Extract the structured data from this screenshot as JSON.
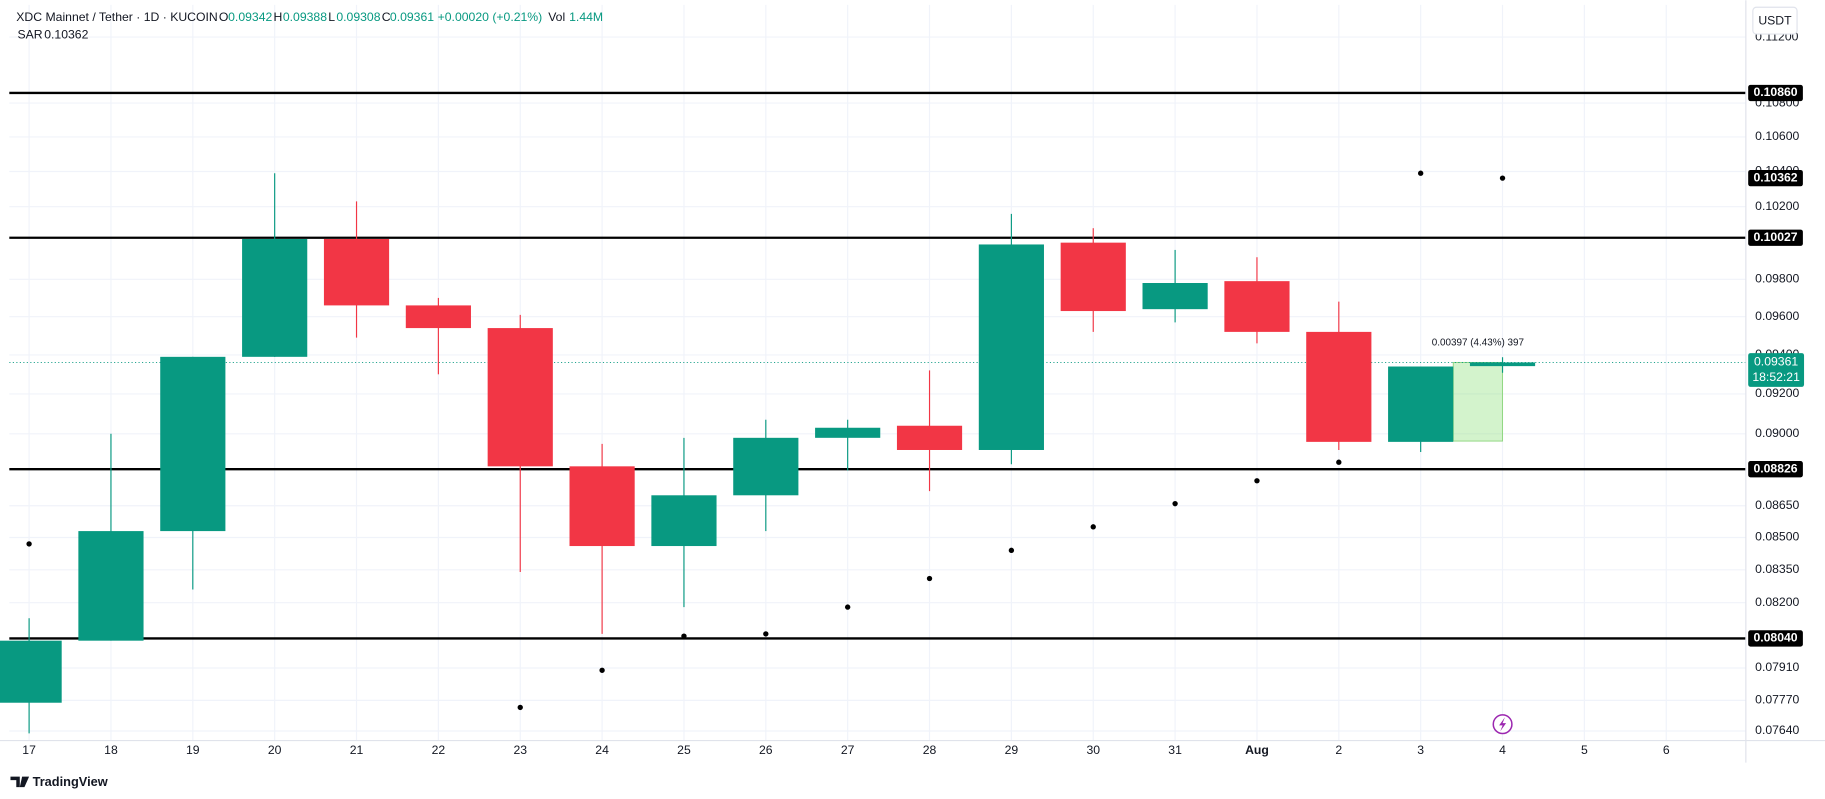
{
  "chart_data": {
    "type": "candlestick",
    "title": "XDC Mainnet / Tether · 1D · KUCOIN",
    "categories": [
      "17",
      "18",
      "19",
      "20",
      "21",
      "22",
      "23",
      "24",
      "25",
      "26",
      "27",
      "28",
      "29",
      "30",
      "31",
      "Aug",
      "2",
      "3",
      "4",
      "5",
      "6"
    ],
    "open": [
      0.0776,
      0.0803,
      0.0853,
      0.0939,
      0.1002,
      0.0966,
      0.0954,
      0.0884,
      0.0846,
      0.087,
      0.0898,
      0.0904,
      0.0892,
      0.1,
      0.0964,
      0.0979,
      0.0952,
      0.0896,
      0.09342,
      null,
      null
    ],
    "high": [
      0.0813,
      0.09,
      0.0939,
      0.1039,
      0.1023,
      0.097,
      0.0961,
      0.0895,
      0.0898,
      0.0907,
      0.0907,
      0.0932,
      0.1016,
      0.1008,
      0.0996,
      0.0992,
      0.0968,
      0.0934,
      0.09388,
      null,
      null
    ],
    "low": [
      0.0763,
      0.0803,
      0.0826,
      0.0939,
      0.0949,
      0.093,
      0.0834,
      0.0806,
      0.0818,
      0.0853,
      0.0882,
      0.0872,
      0.0885,
      0.0952,
      0.0957,
      0.0946,
      0.0892,
      0.0891,
      0.09308,
      null,
      null
    ],
    "close": [
      0.0803,
      0.0853,
      0.0939,
      0.1002,
      0.0966,
      0.0954,
      0.0884,
      0.0846,
      0.087,
      0.0898,
      0.0903,
      0.0892,
      0.0999,
      0.0963,
      0.0978,
      0.0952,
      0.0896,
      0.0934,
      0.09361,
      null,
      null
    ],
    "up_color": "#089981",
    "down_color": "#f23645",
    "indicator": {
      "name": "SAR",
      "color": "#000000",
      "values": [
        0.0847,
        null,
        null,
        null,
        null,
        null,
        0.0774,
        0.079,
        0.0805,
        0.0806,
        0.0818,
        0.0831,
        0.0844,
        0.0855,
        0.0866,
        0.0877,
        0.0886,
        0.1039,
        0.10362,
        null,
        null
      ]
    },
    "header": {
      "open_label": "O",
      "high_label": "H",
      "low_label": "L",
      "close_label": "C",
      "change": "+0.00020 (+0.21%)",
      "volume_label": "Vol",
      "volume": "1.44M"
    },
    "levels": [
      {
        "value": 0.1086,
        "label": "0.10860"
      },
      0.10027,
      0.08826,
      {
        "value": 0.0804,
        "label": "0.08040"
      }
    ],
    "countdown": "18:52:21",
    "currency": "USDT",
    "measure": {
      "label": "0.00397 (4.43%) 397",
      "from": 0.08964,
      "to": 0.09361
    },
    "yscale": "log",
    "ylim": [
      0.076,
      0.114
    ],
    "yticks": [
      {
        "value": 0.112,
        "label": "0.11200"
      },
      {
        "value": 0.108,
        "label": "0.10800"
      },
      {
        "value": 0.106,
        "label": "0.10600"
      },
      {
        "value": 0.104,
        "label": "0.10400"
      },
      {
        "value": 0.102,
        "label": "0.10200"
      },
      {
        "value": 0.098,
        "label": "0.09800"
      },
      {
        "value": 0.096,
        "label": "0.09600"
      },
      {
        "value": 0.094,
        "label": "0.09400"
      },
      {
        "value": 0.092,
        "label": "0.09200"
      },
      {
        "value": 0.09,
        "label": "0.09000"
      },
      {
        "value": 0.0865,
        "label": "0.08650"
      },
      {
        "value": 0.085,
        "label": "0.08500"
      },
      {
        "value": 0.0835,
        "label": "0.08350"
      },
      {
        "value": 0.082,
        "label": "0.08200"
      },
      {
        "value": 0.0791,
        "label": "0.07910"
      },
      {
        "value": 0.0777,
        "label": "0.07770"
      },
      {
        "value": 0.0764,
        "label": "0.07640"
      }
    ],
    "grid": true
  },
  "footer": {
    "brand": "TradingView"
  }
}
